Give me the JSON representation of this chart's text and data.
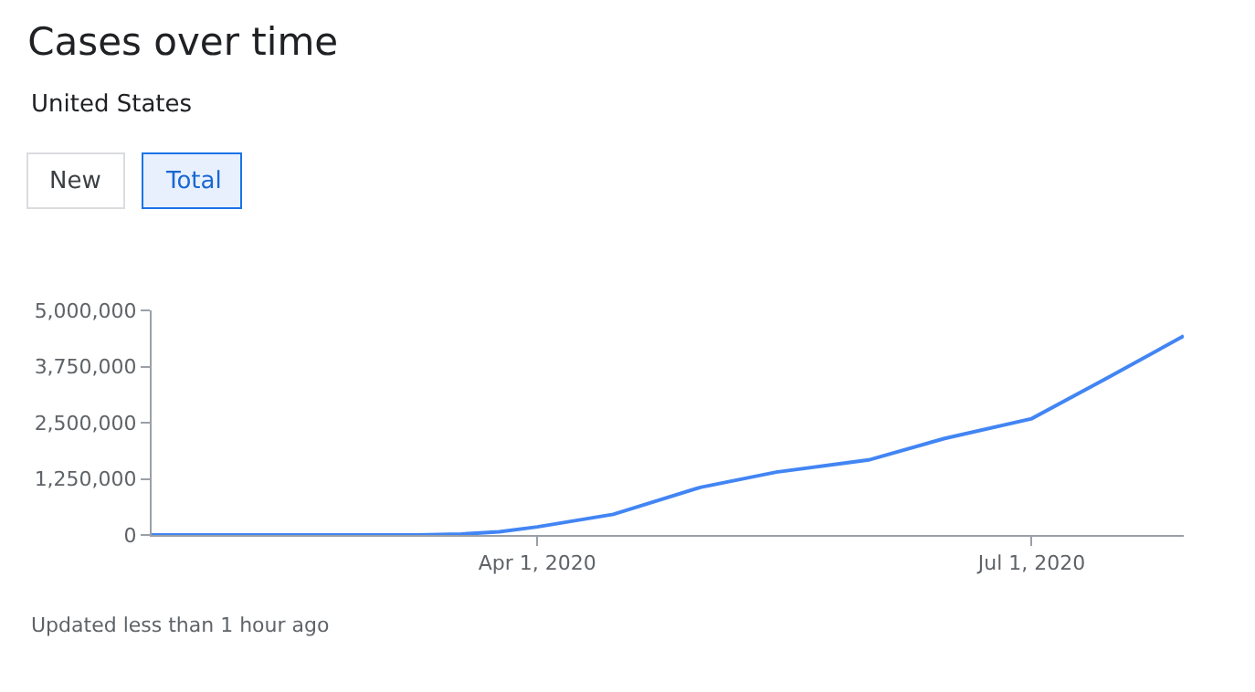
{
  "chart_data": {
    "type": "line",
    "title": "Cases over time",
    "subtitle": "United States",
    "annotations": [
      "New",
      "Total",
      "Updated less than 1 hour ago"
    ],
    "x": [
      "2020-01-21",
      "2020-03-10",
      "2020-03-18",
      "2020-03-25",
      "2020-04-01",
      "2020-04-15",
      "2020-05-01",
      "2020-05-15",
      "2020-06-01",
      "2020-06-15",
      "2020-07-01",
      "2020-07-15",
      "2020-07-29"
    ],
    "series": [
      {
        "color": "#4285f4",
        "values": [
          0,
          0,
          20000,
          70000,
          180000,
          460000,
          1060000,
          1400000,
          1670000,
          2150000,
          2590000,
          3500000,
          4430000
        ]
      }
    ],
    "xlim": [
      "2020-01-21",
      "2020-07-29"
    ],
    "xticks": [
      {
        "value": "2020-04-01",
        "label": "Apr 1, 2020"
      },
      {
        "value": "2020-07-01",
        "label": "Jul 1, 2020"
      }
    ],
    "ylim": [
      0,
      5000000
    ],
    "yticks": [
      {
        "value": 0,
        "label": "0"
      },
      {
        "value": 1250000,
        "label": "1,250,000"
      },
      {
        "value": 2500000,
        "label": "2,500,000"
      },
      {
        "value": 3750000,
        "label": "3,750,000"
      },
      {
        "value": 5000000,
        "label": "5,000,000"
      }
    ],
    "marker": "none",
    "line_style": "solid"
  }
}
